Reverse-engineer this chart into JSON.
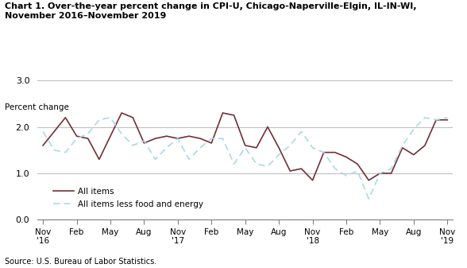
{
  "title": "Chart 1. Over-the-year percent change in CPI-U, Chicago-Naperville-Elgin, IL-IN-WI,\nNovember 2016–November 2019",
  "ylabel": "Percent change",
  "source": "Source: U.S. Bureau of Labor Statistics.",
  "ylim": [
    0.0,
    3.0
  ],
  "yticks": [
    0.0,
    1.0,
    2.0,
    3.0
  ],
  "all_items": [
    1.6,
    1.9,
    2.2,
    1.8,
    1.75,
    1.3,
    1.8,
    2.3,
    2.2,
    1.65,
    1.75,
    1.8,
    1.75,
    1.8,
    1.75,
    1.65,
    2.3,
    2.25,
    1.6,
    1.55,
    2.0,
    1.55,
    1.05,
    1.1,
    0.85,
    1.45,
    1.45,
    1.35,
    1.2,
    0.85,
    1.0,
    1.0,
    1.55,
    1.4,
    1.6,
    2.15,
    2.15
  ],
  "all_items_less": [
    1.9,
    1.5,
    1.45,
    1.75,
    1.85,
    2.15,
    2.2,
    1.85,
    1.6,
    1.7,
    1.3,
    1.55,
    1.75,
    1.3,
    1.55,
    1.75,
    1.75,
    1.2,
    1.55,
    1.2,
    1.15,
    1.4,
    1.6,
    1.9,
    1.55,
    1.45,
    1.1,
    0.95,
    1.05,
    0.45,
    1.0,
    1.1,
    1.6,
    1.95,
    2.2,
    2.15,
    2.2
  ],
  "all_items_color": "#722F37",
  "all_items_less_color": "#add8e6",
  "grid_color": "#c0c0c0",
  "background_color": "#ffffff",
  "tick_labels": [
    "Nov\n'16",
    "Feb",
    "May",
    "Aug",
    "Nov\n'17",
    "Feb",
    "May",
    "Aug",
    "Nov\n'18",
    "Feb",
    "May",
    "Aug",
    "Nov\n'19"
  ],
  "tick_positions": [
    0,
    3,
    6,
    9,
    12,
    15,
    18,
    21,
    24,
    27,
    30,
    33,
    36
  ]
}
